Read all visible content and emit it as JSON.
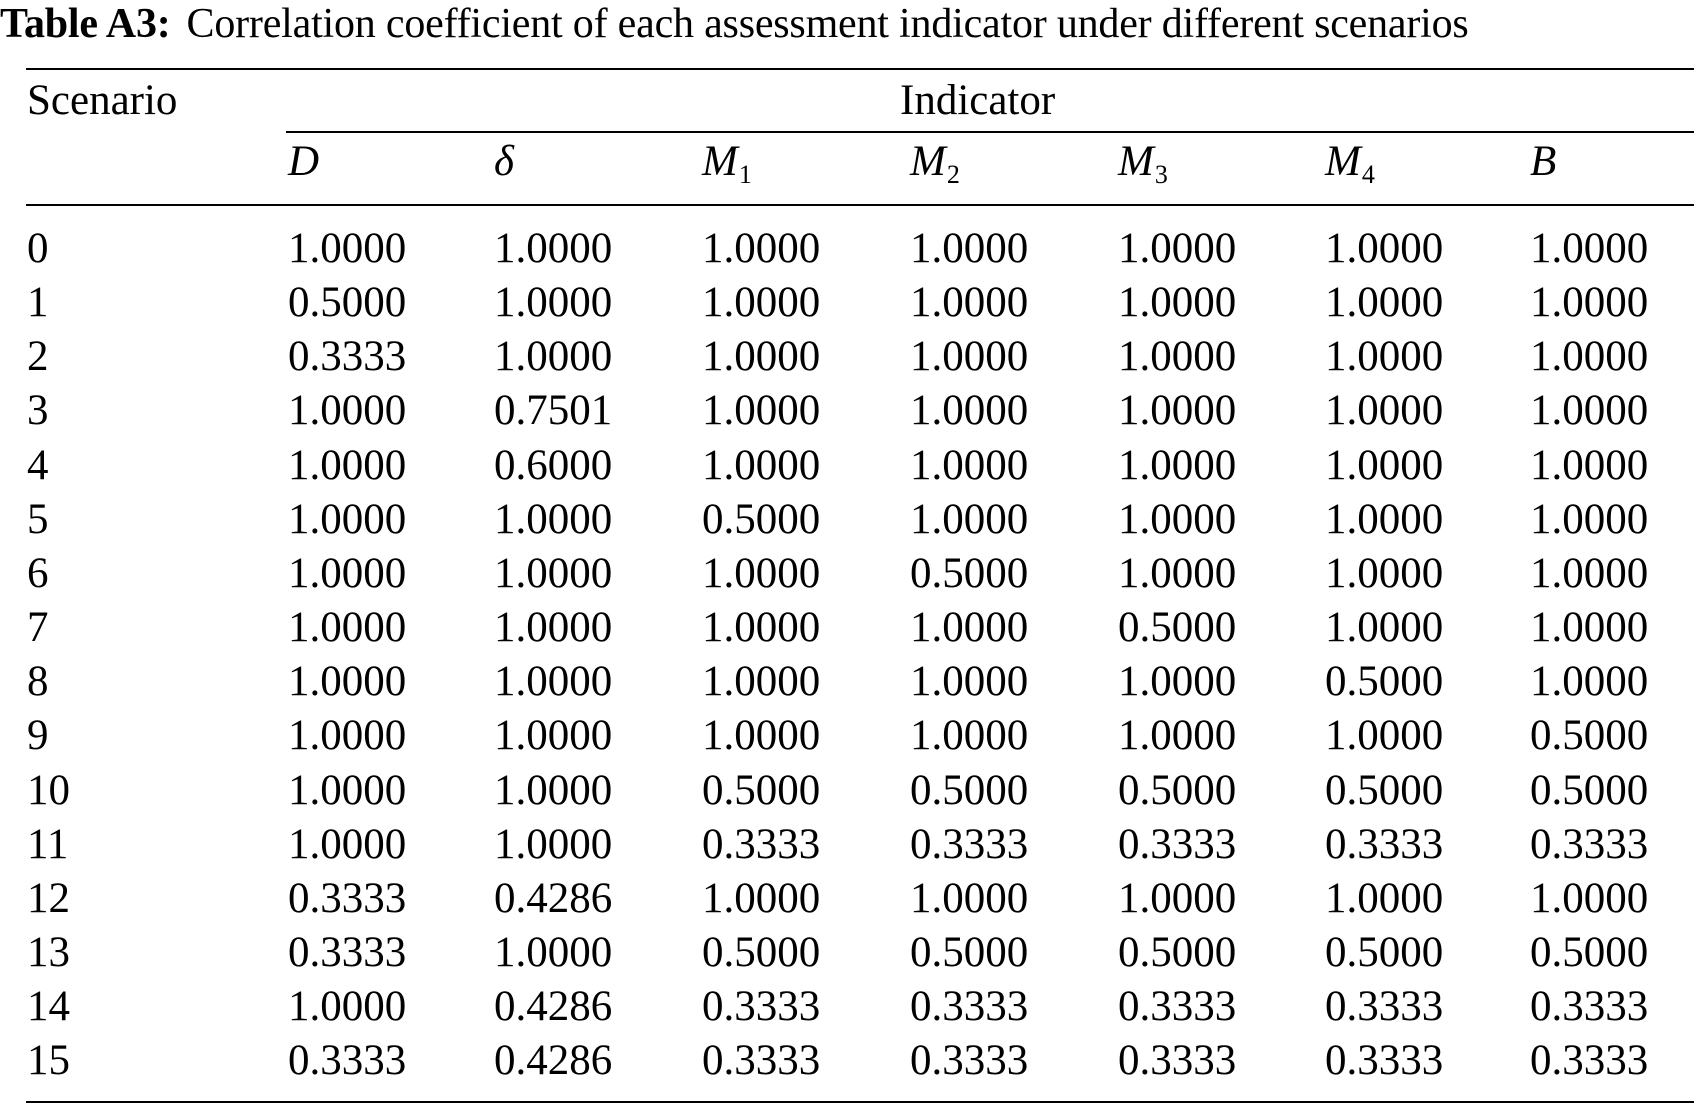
{
  "caption": {
    "label": "Table A3:",
    "text": "Correlation coefficient of each assessment indicator under different scenarios"
  },
  "header": {
    "scenario": "Scenario",
    "indicator": "Indicator",
    "columns": [
      {
        "main": "D",
        "sub": ""
      },
      {
        "main": "δ",
        "sub": ""
      },
      {
        "main": "M",
        "sub": "1"
      },
      {
        "main": "M",
        "sub": "2"
      },
      {
        "main": "M",
        "sub": "3"
      },
      {
        "main": "M",
        "sub": "4"
      },
      {
        "main": "B",
        "sub": ""
      }
    ]
  },
  "rows": [
    {
      "scenario": "0",
      "values": [
        "1.0000",
        "1.0000",
        "1.0000",
        "1.0000",
        "1.0000",
        "1.0000",
        "1.0000"
      ]
    },
    {
      "scenario": "1",
      "values": [
        "0.5000",
        "1.0000",
        "1.0000",
        "1.0000",
        "1.0000",
        "1.0000",
        "1.0000"
      ]
    },
    {
      "scenario": "2",
      "values": [
        "0.3333",
        "1.0000",
        "1.0000",
        "1.0000",
        "1.0000",
        "1.0000",
        "1.0000"
      ]
    },
    {
      "scenario": "3",
      "values": [
        "1.0000",
        "0.7501",
        "1.0000",
        "1.0000",
        "1.0000",
        "1.0000",
        "1.0000"
      ]
    },
    {
      "scenario": "4",
      "values": [
        "1.0000",
        "0.6000",
        "1.0000",
        "1.0000",
        "1.0000",
        "1.0000",
        "1.0000"
      ]
    },
    {
      "scenario": "5",
      "values": [
        "1.0000",
        "1.0000",
        "0.5000",
        "1.0000",
        "1.0000",
        "1.0000",
        "1.0000"
      ]
    },
    {
      "scenario": "6",
      "values": [
        "1.0000",
        "1.0000",
        "1.0000",
        "0.5000",
        "1.0000",
        "1.0000",
        "1.0000"
      ]
    },
    {
      "scenario": "7",
      "values": [
        "1.0000",
        "1.0000",
        "1.0000",
        "1.0000",
        "0.5000",
        "1.0000",
        "1.0000"
      ]
    },
    {
      "scenario": "8",
      "values": [
        "1.0000",
        "1.0000",
        "1.0000",
        "1.0000",
        "1.0000",
        "0.5000",
        "1.0000"
      ]
    },
    {
      "scenario": "9",
      "values": [
        "1.0000",
        "1.0000",
        "1.0000",
        "1.0000",
        "1.0000",
        "1.0000",
        "0.5000"
      ]
    },
    {
      "scenario": "10",
      "values": [
        "1.0000",
        "1.0000",
        "0.5000",
        "0.5000",
        "0.5000",
        "0.5000",
        "0.5000"
      ]
    },
    {
      "scenario": "11",
      "values": [
        "1.0000",
        "1.0000",
        "0.3333",
        "0.3333",
        "0.3333",
        "0.3333",
        "0.3333"
      ]
    },
    {
      "scenario": "12",
      "values": [
        "0.3333",
        "0.4286",
        "1.0000",
        "1.0000",
        "1.0000",
        "1.0000",
        "1.0000"
      ]
    },
    {
      "scenario": "13",
      "values": [
        "0.3333",
        "1.0000",
        "0.5000",
        "0.5000",
        "0.5000",
        "0.5000",
        "0.5000"
      ]
    },
    {
      "scenario": "14",
      "values": [
        "1.0000",
        "0.4286",
        "0.3333",
        "0.3333",
        "0.3333",
        "0.3333",
        "0.3333"
      ]
    },
    {
      "scenario": "15",
      "values": [
        "0.3333",
        "0.4286",
        "0.3333",
        "0.3333",
        "0.3333",
        "0.3333",
        "0.3333"
      ]
    }
  ]
}
